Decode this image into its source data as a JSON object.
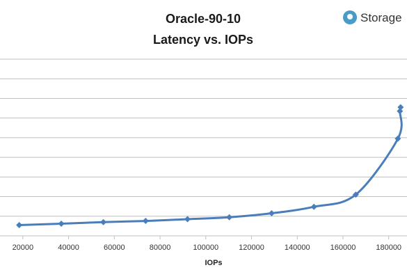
{
  "brand": {
    "logo_text": "Storage",
    "logo_color": "#4a9cc8"
  },
  "chart_data": {
    "type": "line",
    "title": "Oracle-90-10",
    "subtitle": "Latency vs. IOPs",
    "xlabel": "IOPs",
    "ylabel": "",
    "xlim": [
      10000,
      188000
    ],
    "ylim": [
      0,
      9
    ],
    "x_ticks": [
      20000,
      40000,
      60000,
      80000,
      100000,
      120000,
      140000,
      160000,
      180000
    ],
    "y_gridlines": 9,
    "y_tick_labels_visible": false,
    "grid": true,
    "line_color": "#4a7ebb",
    "series": [
      {
        "x": [
          18400,
          36800,
          55200,
          73700,
          92000,
          110300,
          128800,
          147300,
          165600,
          184000,
          184900,
          185200
        ],
        "y": [
          0.55,
          0.62,
          0.7,
          0.76,
          0.85,
          0.95,
          1.15,
          1.48,
          2.1,
          4.95,
          6.35,
          6.55
        ]
      }
    ]
  }
}
